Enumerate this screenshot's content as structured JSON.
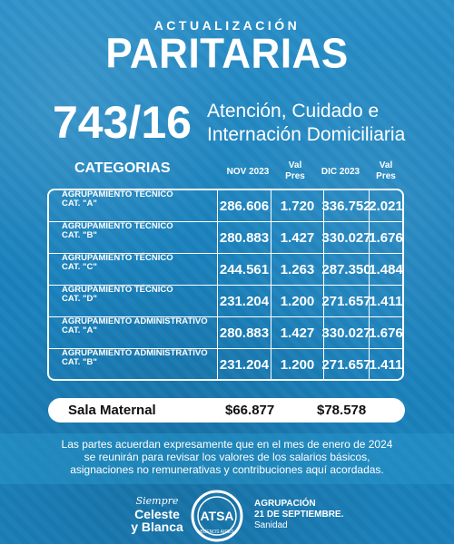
{
  "header": {
    "subtitle": "ACTUALIZACIÓN",
    "title": "PARITARIAS"
  },
  "convenio": {
    "number": "743/16",
    "description_line1": "Atención, Cuidado e",
    "description_line2": "Internación Domiciliaria"
  },
  "columns": {
    "categorias": "CATEGORIAS",
    "nov": "NOV 2023",
    "val_pres_1_line1": "Val",
    "val_pres_1_line2": "Pres",
    "dic": "DIC 2023",
    "val_pres_2_line1": "Val",
    "val_pres_2_line2": "Pres"
  },
  "rows": [
    {
      "line1": "AGRUPAMIENTO TÉCNICO",
      "line2": "CAT. \"A\"",
      "nov": "286.606",
      "val1": "1.720",
      "dic": "336.752",
      "val2": "2.021"
    },
    {
      "line1": "AGRUPAMIENTO TÉCNICO",
      "line2": "CAT. \"B\"",
      "nov": "280.883",
      "val1": "1.427",
      "dic": "330.027",
      "val2": "1.676"
    },
    {
      "line1": "AGRUPAMIENTO TÉCNICO",
      "line2": "CAT. \"C\"",
      "nov": "244.561",
      "val1": "1.263",
      "dic": "287.350",
      "val2": "1.484"
    },
    {
      "line1": "AGRUPAMIENTO TÉCNICO",
      "line2": "CAT. \"D\"",
      "nov": "231.204",
      "val1": "1.200",
      "dic": "271.657",
      "val2": "1.411"
    },
    {
      "line1": "AGRUPAMIENTO ADMINISTRATIVO",
      "line2": "CAT. \"A\"",
      "nov": "280.883",
      "val1": "1.427",
      "dic": "330.027",
      "val2": "1.676"
    },
    {
      "line1": "AGRUPAMIENTO ADMINISTRATIVO",
      "line2": "CAT. \"B\"",
      "nov": "231.204",
      "val1": "1.200",
      "dic": "271.657",
      "val2": "1.411"
    }
  ],
  "sala_maternal": {
    "label": "Sala Maternal",
    "nov": "$66.877",
    "dic": "$78.578"
  },
  "note": {
    "line1": "Las partes acuerdan expresamente que en el mes de enero de 2024",
    "line2": "se reunirán para revisar los valores de los salarios básicos,",
    "line3": "asignaciones no remunerativas y contribuciones aquí acordadas."
  },
  "footer": {
    "slogan_script": "Siempre",
    "slogan_line1": "Celeste",
    "slogan_line2": "y Blanca",
    "badge_text": "ATSA",
    "badge_sub": "BUENOS AIRES",
    "agrupacion_line1": "AGRUPACIÓN",
    "agrupacion_line2": "21 DE SEPTIEMBRE.",
    "agrupacion_line3": "Sanidad"
  },
  "colors": {
    "background": "#1d86bf",
    "text": "#ffffff",
    "sala_bg": "#ffffff"
  }
}
